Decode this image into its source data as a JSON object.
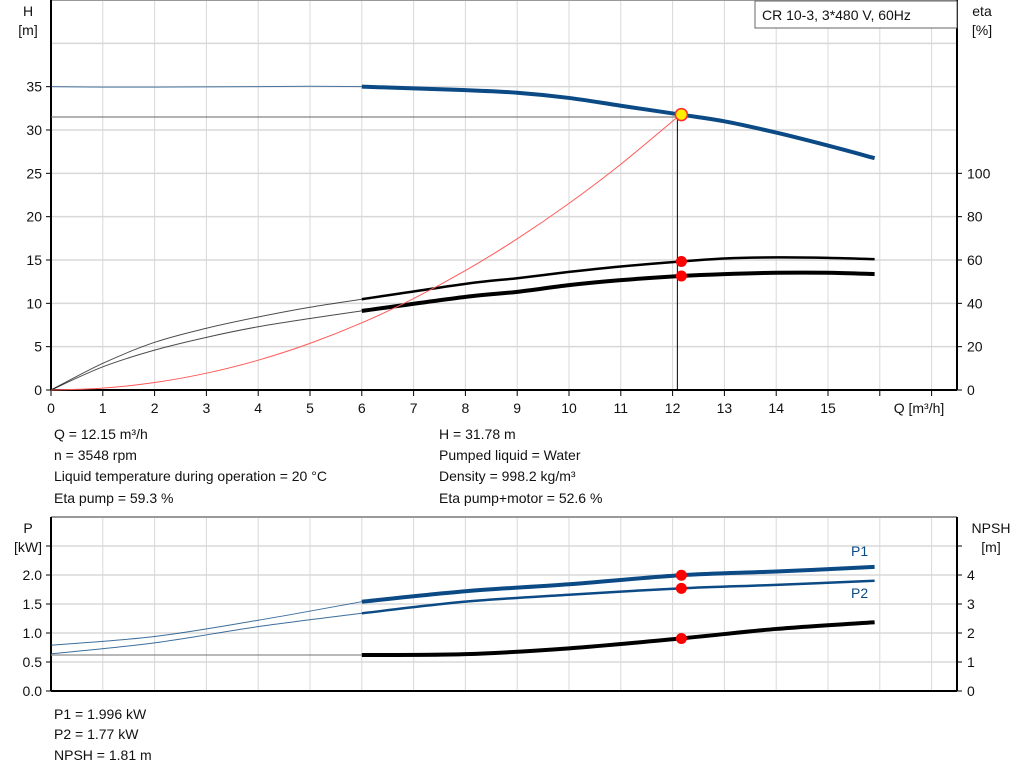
{
  "chart_data": [
    {
      "type": "line",
      "title": "CR 10-3, 3*480 V, 60Hz",
      "xlabel": "Q [m³/h]",
      "ylabel": "H\n[m]",
      "y2label": "eta\n[%]",
      "xlim": [
        0,
        17.5
      ],
      "ylim": [
        0,
        45
      ],
      "y2lim": [
        0,
        180
      ],
      "x_ticks": [
        "0",
        "1",
        "2",
        "3",
        "4",
        "5",
        "6",
        "7",
        "8",
        "9",
        "10",
        "11",
        "12",
        "13",
        "14",
        "15"
      ],
      "y_ticks": [
        "0",
        "5",
        "10",
        "15",
        "20",
        "25",
        "30",
        "35"
      ],
      "y2_ticks": [
        "0",
        "20",
        "40",
        "60",
        "80",
        "100"
      ],
      "grid": true,
      "series": [
        {
          "key": "H",
          "axis": "left",
          "color": "#0b4a85",
          "x": [
            0,
            1,
            2,
            3,
            4,
            5,
            6,
            8,
            9,
            10,
            11,
            12.15,
            13,
            14,
            15,
            15.9
          ],
          "y": [
            35.0,
            34.95,
            34.95,
            34.97,
            35.0,
            35.05,
            35.0,
            34.6,
            34.3,
            33.7,
            32.8,
            31.78,
            31.0,
            29.7,
            28.2,
            26.75
          ]
        },
        {
          "key": "eta_pump",
          "axis": "right",
          "color": "#000000",
          "x": [
            0,
            1,
            2,
            3,
            4,
            5,
            6,
            8,
            9,
            10,
            11,
            12.15,
            13,
            14,
            15,
            15.9
          ],
          "y": [
            0,
            12.3,
            22,
            28.5,
            33.7,
            38.2,
            41.9,
            49,
            51.6,
            54.5,
            57,
            59.3,
            60.7,
            61.2,
            61,
            60.4
          ]
        },
        {
          "key": "eta_pump_motor",
          "axis": "right",
          "color": "#000000",
          "x": [
            0,
            1,
            2,
            3,
            4,
            5,
            6,
            8,
            9,
            10,
            11,
            12.15,
            13,
            14,
            15,
            15.9
          ],
          "y": [
            0,
            10.7,
            18.4,
            24.3,
            29.2,
            33,
            36.5,
            43,
            45.3,
            48.4,
            50.7,
            52.6,
            53.5,
            54.1,
            54.1,
            53.5
          ]
        },
        {
          "key": "system_curve",
          "axis": "left",
          "color": "#ff0000",
          "x": [
            0,
            1,
            2,
            3,
            4,
            5,
            6,
            7,
            8,
            9,
            10,
            11,
            12.15
          ],
          "y": [
            0,
            0.22,
            0.86,
            1.94,
            3.44,
            5.38,
            7.75,
            10.55,
            13.78,
            17.44,
            21.53,
            26.05,
            31.78
          ]
        }
      ],
      "duty_point": {
        "Q": 12.15,
        "H": 31.78,
        "eta_pump": 59.3,
        "eta_pump_motor": 52.6
      }
    },
    {
      "type": "line",
      "ylabel": "P\n[kW]",
      "y2label": "NPSH\n[m]",
      "xlim": [
        0,
        17.5
      ],
      "ylim": [
        0,
        3
      ],
      "y2lim": [
        0,
        6
      ],
      "y_ticks": [
        "0.0",
        "0.5",
        "1.0",
        "1.5",
        "2.0"
      ],
      "y2_ticks": [
        "0",
        "1",
        "2",
        "3",
        "4"
      ],
      "grid": true,
      "series": [
        {
          "key": "P1",
          "name": "P1",
          "axis": "left",
          "color": "#0b4a85",
          "x": [
            0,
            2,
            4,
            6,
            8,
            10,
            12.15,
            14,
            15.9
          ],
          "y": [
            0.79,
            0.94,
            1.22,
            1.54,
            1.72,
            1.84,
            1.996,
            2.06,
            2.14
          ]
        },
        {
          "key": "P2",
          "name": "P2",
          "axis": "left",
          "color": "#0b4a85",
          "x": [
            0,
            2,
            4,
            6,
            8,
            10,
            12.15,
            14,
            15.9
          ],
          "y": [
            0.64,
            0.83,
            1.11,
            1.34,
            1.54,
            1.66,
            1.77,
            1.83,
            1.9
          ]
        },
        {
          "key": "NPSH",
          "axis": "right",
          "color": "#000000",
          "x": [
            0,
            2,
            4,
            6,
            8,
            10,
            12.15,
            14,
            15.9
          ],
          "y": [
            1.24,
            1.24,
            1.24,
            1.24,
            1.27,
            1.47,
            1.81,
            2.14,
            2.37
          ]
        }
      ]
    }
  ],
  "readouts_top": {
    "q": "Q = 12.15 m³/h",
    "n": "n = 3548 rpm",
    "temp": "Liquid temperature during operation = 20 °C",
    "eta_pump": "Eta pump = 59.3 %",
    "h": "H = 31.78 m",
    "liquid": "Pumped liquid = Water",
    "density": "Density = 998.2 kg/m³",
    "eta_pm": "Eta pump+motor = 52.6 %"
  },
  "readouts_bottom": {
    "p1": "P1 = 1.996 kW",
    "p2": "P2 = 1.77 kW",
    "npsh": "NPSH = 1.81 m"
  }
}
